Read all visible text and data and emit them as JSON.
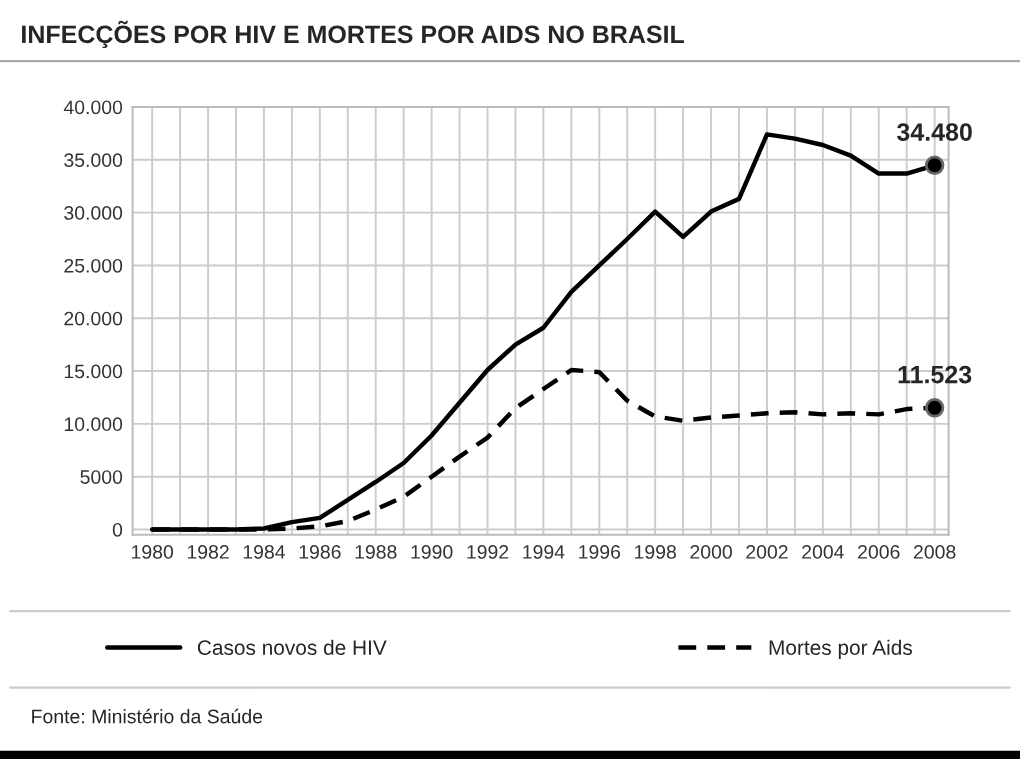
{
  "chart_data": {
    "type": "line",
    "title": "INFECÇÕES POR HIV E MORTES POR AIDS NO BRASIL",
    "x": [
      1980,
      1981,
      1982,
      1983,
      1984,
      1985,
      1986,
      1987,
      1988,
      1989,
      1990,
      1991,
      1992,
      1993,
      1994,
      1995,
      1996,
      1997,
      1998,
      1999,
      2000,
      2001,
      2002,
      2003,
      2004,
      2005,
      2006,
      2007,
      2008
    ],
    "series": [
      {
        "name": "Casos novos de HIV",
        "color": "#000000",
        "line_style": "solid",
        "values": [
          0,
          0,
          0,
          0,
          100,
          700,
          1100,
          2800,
          4500,
          6300,
          8900,
          12000,
          15100,
          17500,
          19100,
          22500,
          25000,
          27500,
          30100,
          27700,
          30100,
          31300,
          37400,
          37000,
          36400,
          35400,
          33700,
          33700,
          34480
        ]
      },
      {
        "name": "Mortes por Aids",
        "color": "#000000",
        "line_style": "dashed",
        "values": [
          0,
          0,
          0,
          0,
          0,
          100,
          300,
          800,
          1900,
          3100,
          5000,
          6900,
          8700,
          11500,
          13300,
          15100,
          14900,
          12200,
          10700,
          10300,
          10600,
          10800,
          11000,
          11100,
          10900,
          11000,
          10900,
          11400,
          11523
        ]
      }
    ],
    "xlim": [
      1979.3,
      2008.5
    ],
    "xticks": [
      1980,
      {
        "value": 1981,
        "label": null
      },
      1982,
      {
        "value": 1983,
        "label": null
      },
      1984,
      {
        "value": 1985,
        "label": null
      },
      1986,
      {
        "value": 1987,
        "label": null
      },
      1988,
      {
        "value": 1989,
        "label": null
      },
      1990,
      {
        "value": 1991,
        "label": null
      },
      1992,
      {
        "value": 1993,
        "label": null
      },
      1994,
      {
        "value": 1995,
        "label": null
      },
      1996,
      {
        "value": 1997,
        "label": null
      },
      1998,
      {
        "value": 1999,
        "label": null
      },
      2000,
      {
        "value": 2001,
        "label": null
      },
      2002,
      {
        "value": 2003,
        "label": null
      },
      2004,
      {
        "value": 2005,
        "label": null
      },
      2006,
      {
        "value": 2007,
        "label": null
      },
      2008
    ],
    "ylim": [
      -500,
      40000
    ],
    "yticks": [
      0,
      {
        "value": 5000,
        "label": "5000"
      },
      {
        "value": 10000,
        "label": "10.000"
      },
      {
        "value": 15000,
        "label": "15.000"
      },
      {
        "value": 20000,
        "label": "20.000"
      },
      {
        "value": 25000,
        "label": "25.000"
      },
      {
        "value": 30000,
        "label": "30.000"
      },
      {
        "value": 35000,
        "label": "35.000"
      },
      {
        "value": 40000,
        "label": "40.000"
      }
    ],
    "grid": true,
    "legend": "bottom",
    "annotations": [
      {
        "text": "34.480",
        "x": 2008,
        "y": 34480
      },
      {
        "text": "11.523",
        "x": 2008,
        "y": 11523
      },
      "Fonte: Ministério da Saúde"
    ]
  }
}
